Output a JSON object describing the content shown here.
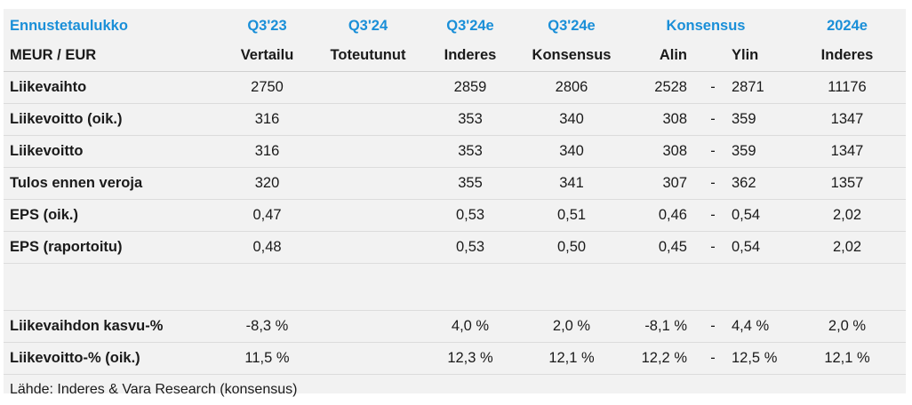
{
  "header": {
    "title": "Ennustetaulukko",
    "columns_top": [
      "Q3'23",
      "Q3'24",
      "Q3'24e",
      "Q3'24e",
      "Konsensus",
      "2024e"
    ],
    "row_header_label": "MEUR / EUR",
    "columns_sub": [
      "Vertailu",
      "Toteutunut",
      "Inderes",
      "Konsensus",
      "Alin",
      "Ylin",
      "Inderes"
    ]
  },
  "rows": [
    {
      "label": "Liikevaihto",
      "q323": "2750",
      "q324": "",
      "q324e_inderes": "2859",
      "q324e_kons": "2806",
      "alin": "2528",
      "dash": "-",
      "ylin": "2871",
      "y2024": "11176"
    },
    {
      "label": "Liikevoitto (oik.)",
      "q323": "316",
      "q324": "",
      "q324e_inderes": "353",
      "q324e_kons": "340",
      "alin": "308",
      "dash": "-",
      "ylin": "359",
      "y2024": "1347"
    },
    {
      "label": "Liikevoitto",
      "q323": "316",
      "q324": "",
      "q324e_inderes": "353",
      "q324e_kons": "340",
      "alin": "308",
      "dash": "-",
      "ylin": "359",
      "y2024": "1347"
    },
    {
      "label": "Tulos ennen veroja",
      "q323": "320",
      "q324": "",
      "q324e_inderes": "355",
      "q324e_kons": "341",
      "alin": "307",
      "dash": "-",
      "ylin": "362",
      "y2024": "1357"
    },
    {
      "label": "EPS (oik.)",
      "q323": "0,47",
      "q324": "",
      "q324e_inderes": "0,53",
      "q324e_kons": "0,51",
      "alin": "0,46",
      "dash": "-",
      "ylin": "0,54",
      "y2024": "2,02"
    },
    {
      "label": "EPS (raportoitu)",
      "q323": "0,48",
      "q324": "",
      "q324e_inderes": "0,53",
      "q324e_kons": "0,50",
      "alin": "0,45",
      "dash": "-",
      "ylin": "0,54",
      "y2024": "2,02"
    }
  ],
  "pct_rows": [
    {
      "label": "Liikevaihdon kasvu-%",
      "q323": "-8,3 %",
      "q324": "",
      "q324e_inderes": "4,0 %",
      "q324e_kons": "2,0 %",
      "alin": "-8,1 %",
      "dash": "-",
      "ylin": "4,4 %",
      "y2024": "2,0 %"
    },
    {
      "label": "Liikevoitto-% (oik.)",
      "q323": "11,5 %",
      "q324": "",
      "q324e_inderes": "12,3 %",
      "q324e_kons": "12,1 %",
      "alin": "12,2 %",
      "dash": "-",
      "ylin": "12,5 %",
      "y2024": "12,1 %"
    }
  ],
  "source": "Lähde: Inderes & Vara Research  (konsensus)",
  "colors": {
    "accent": "#1a8fd8",
    "panel_bg": "#f2f2f2",
    "rule": "#dcdcdc"
  }
}
